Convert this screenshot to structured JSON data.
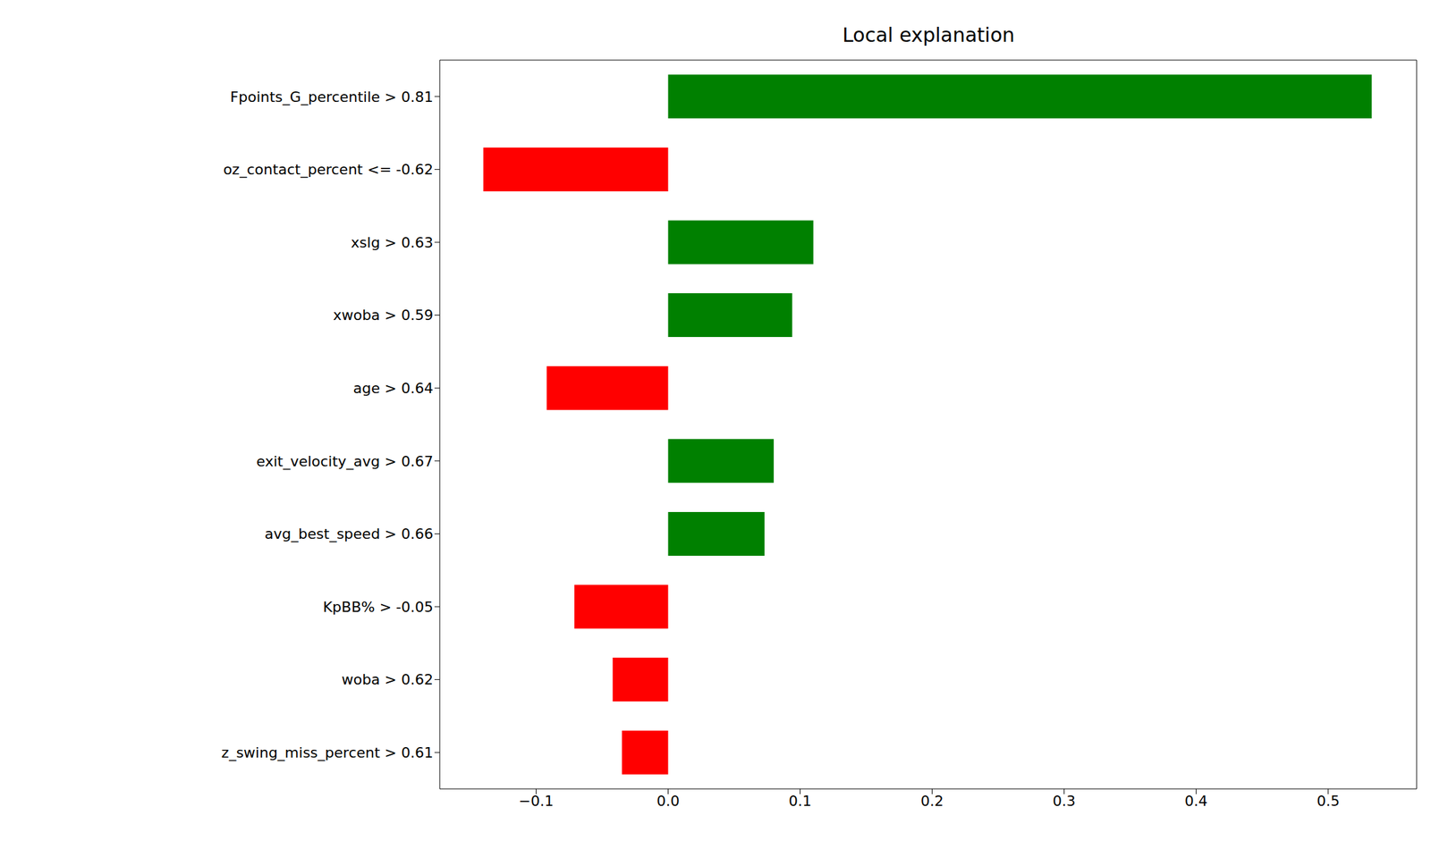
{
  "chart_data": {
    "type": "bar",
    "title": "Local explanation",
    "orientation": "horizontal",
    "categories": [
      "Fpoints_G_percentile > 0.81",
      "oz_contact_percent <= -0.62",
      "xslg > 0.63",
      "xwoba > 0.59",
      "age > 0.64",
      "exit_velocity_avg > 0.67",
      "avg_best_speed > 0.66",
      "KpBB% > -0.05",
      "woba > 0.62",
      "z_swing_miss_percent > 0.61"
    ],
    "values": [
      0.533,
      -0.14,
      0.11,
      0.094,
      -0.092,
      0.08,
      0.073,
      -0.071,
      -0.042,
      -0.035
    ],
    "colors": [
      "#008000",
      "#ff0000",
      "#008000",
      "#008000",
      "#ff0000",
      "#008000",
      "#008000",
      "#ff0000",
      "#ff0000",
      "#ff0000"
    ],
    "xlim": [
      -0.173,
      0.567
    ],
    "xticks": [
      {
        "value": -0.1,
        "label": "−0.1"
      },
      {
        "value": 0,
        "label": "0.0"
      },
      0.1,
      0.2,
      0.3,
      0.4,
      0.5
    ],
    "grid": false
  }
}
